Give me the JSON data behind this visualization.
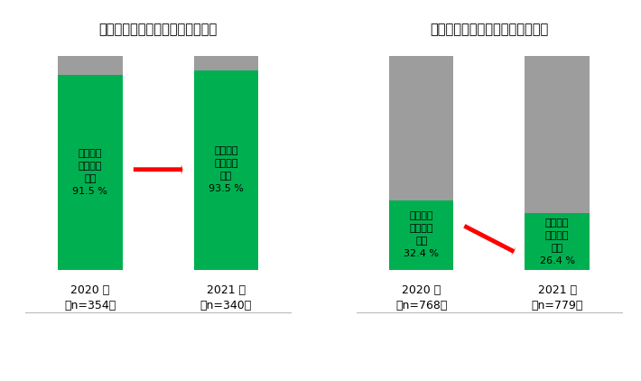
{
  "left_title": "過去、実施したことのある回答者",
  "right_title": "過去、実施したことのない回答者",
  "left_bars": {
    "year_labels": [
      "2020 年",
      "2021 年"
    ],
    "n_labels": [
      "（n=354）",
      "（n=340）"
    ],
    "green": [
      91.5,
      93.5
    ],
    "gray": [
      8.5,
      6.5
    ]
  },
  "right_bars": {
    "year_labels": [
      "2020 年",
      "2021 年"
    ],
    "n_labels": [
      "（n=768）",
      "（n=779）"
    ],
    "green": [
      32.4,
      26.4
    ],
    "gray": [
      67.6,
      73.6
    ]
  },
  "green_color": "#00b050",
  "gray_color": "#9d9d9d",
  "bar_width": 0.38,
  "label_line1": "今後実施",
  "label_line2": "したいと",
  "label_line3": "思う",
  "text_color": "#000000",
  "background_color": "#ffffff",
  "positions": [
    0,
    0.8
  ]
}
